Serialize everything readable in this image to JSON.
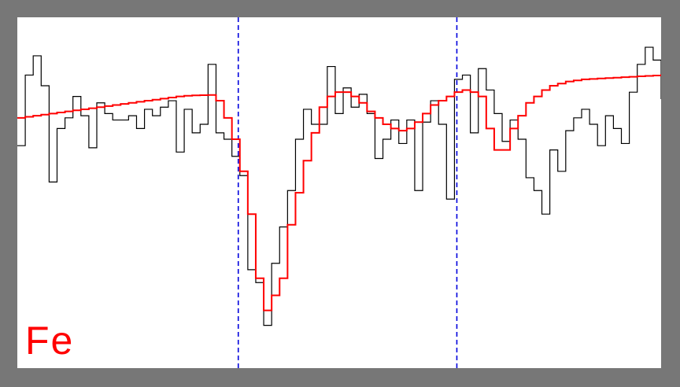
{
  "chart_data": {
    "type": "line",
    "title": "",
    "xlabel": "",
    "ylabel": "",
    "xlim": [
      0,
      81
    ],
    "ylim": [
      -0.32,
      1.32
    ],
    "grid": false,
    "label": "Fe",
    "colors": {
      "observed": "#000000",
      "model": "#ff0000",
      "markers": "#0000dd",
      "label": "#ff0000",
      "frame": "#777777",
      "background": "#ffffff"
    },
    "vertical_markers": [
      27.8,
      55.3
    ],
    "series": [
      {
        "style": "step",
        "color": "#000000",
        "values": [
          0.72,
          1.05,
          1.14,
          1.0,
          0.55,
          0.8,
          0.85,
          0.95,
          0.86,
          0.71,
          0.92,
          0.87,
          0.84,
          0.84,
          0.86,
          0.8,
          0.89,
          0.86,
          0.9,
          0.93,
          0.69,
          0.89,
          0.78,
          0.82,
          1.1,
          0.78,
          0.75,
          0.67,
          0.58,
          0.14,
          0.08,
          -0.12,
          0.17,
          0.34,
          0.51,
          0.75,
          0.89,
          0.82,
          0.82,
          1.09,
          0.87,
          0.99,
          0.9,
          0.96,
          0.87,
          0.66,
          0.75,
          0.84,
          0.73,
          0.84,
          0.51,
          0.83,
          0.93,
          0.82,
          0.47,
          1.03,
          1.05,
          0.78,
          1.08,
          0.98,
          0.87,
          0.74,
          0.84,
          0.75,
          0.57,
          0.51,
          0.4,
          0.7,
          0.6,
          0.79,
          0.85,
          0.89,
          0.82,
          0.72,
          0.86,
          0.8,
          0.73,
          0.97,
          1.1,
          1.18,
          1.12,
          0.94
        ]
      },
      {
        "style": "step",
        "color": "#ff0000",
        "values": [
          0.85,
          0.855,
          0.86,
          0.865,
          0.87,
          0.875,
          0.88,
          0.885,
          0.89,
          0.895,
          0.9,
          0.905,
          0.91,
          0.915,
          0.92,
          0.925,
          0.93,
          0.935,
          0.94,
          0.945,
          0.95,
          0.953,
          0.955,
          0.956,
          0.957,
          0.93,
          0.85,
          0.75,
          0.6,
          0.4,
          0.1,
          -0.05,
          0.02,
          0.1,
          0.35,
          0.5,
          0.65,
          0.78,
          0.9,
          0.95,
          0.97,
          0.97,
          0.95,
          0.92,
          0.88,
          0.85,
          0.82,
          0.8,
          0.79,
          0.8,
          0.83,
          0.87,
          0.91,
          0.93,
          0.95,
          0.97,
          0.98,
          0.97,
          0.95,
          0.8,
          0.7,
          0.7,
          0.8,
          0.86,
          0.92,
          0.95,
          0.98,
          1.0,
          1.01,
          1.02,
          1.025,
          1.03,
          1.032,
          1.034,
          1.036,
          1.038,
          1.04,
          1.042,
          1.044,
          1.046,
          1.048,
          1.05
        ]
      }
    ]
  }
}
